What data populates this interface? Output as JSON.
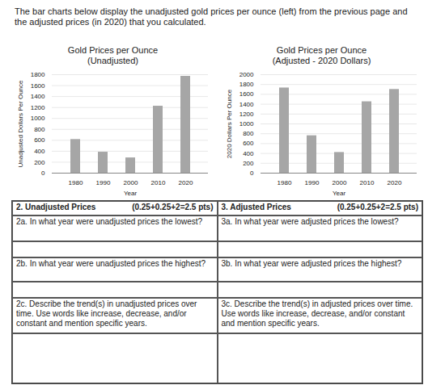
{
  "chart_data": [
    {
      "type": "bar",
      "title": "Gold Prices per Ounce",
      "subtitle": "(Unadjusted)",
      "x_label": "Year",
      "y_label": "Unadjusted Dollars Per Ounce",
      "categories": [
        "1980",
        "1990",
        "2000",
        "2010",
        "2020"
      ],
      "values": [
        615,
        383,
        279,
        1224,
        1770
      ],
      "color": "#a6a6a6",
      "ylim": [
        0,
        1800
      ],
      "yticks": [
        0,
        200,
        400,
        600,
        800,
        1000,
        1200,
        1400,
        1600,
        1800
      ],
      "grid": true
    },
    {
      "type": "bar",
      "title": "Gold Prices per Ounce",
      "subtitle": "(Adjusted - 2020 Dollars)",
      "x_label": "Year",
      "y_label": "2020 Dollars Per Ounce",
      "categories": [
        "1980",
        "1990",
        "2000",
        "2010",
        "2020"
      ],
      "values": [
        1730,
        760,
        420,
        1450,
        1700
      ],
      "color": "#a6a6a6",
      "ylim": [
        0,
        2000
      ],
      "yticks": [
        0,
        200,
        400,
        600,
        800,
        1000,
        1200,
        1400,
        1600,
        1800,
        2000
      ],
      "grid": true
    }
  ],
  "worksheet": {
    "intro": "The bar charts below display the unadjusted gold prices per ounce (left) from the previous page and the adjusted prices (in 2020) that you calculated.",
    "columns": [
      {
        "heading": "2. Unadjusted Prices",
        "points": "(0.25+0.25+2=2.5 pts)",
        "questions": [
          "2a. In what year were unadjusted prices the lowest?",
          "2b. In what year were unadjusted prices the highest?",
          "2c. Describe the trend(s) in unadjusted prices over time. Use words like increase, decrease, and/or constant and mention specific years."
        ]
      },
      {
        "heading": "3. Adjusted Prices",
        "points": "(0.25+0.25+2=2.5 pts)",
        "questions": [
          "3a. In what year were adjusted prices the lowest?",
          "3b. In what year were adjusted prices the highest?",
          "3c. Describe the trend(s) in adjusted prices over time. Use words like increase, decrease, and/or constant and mention specific years."
        ]
      }
    ]
  }
}
